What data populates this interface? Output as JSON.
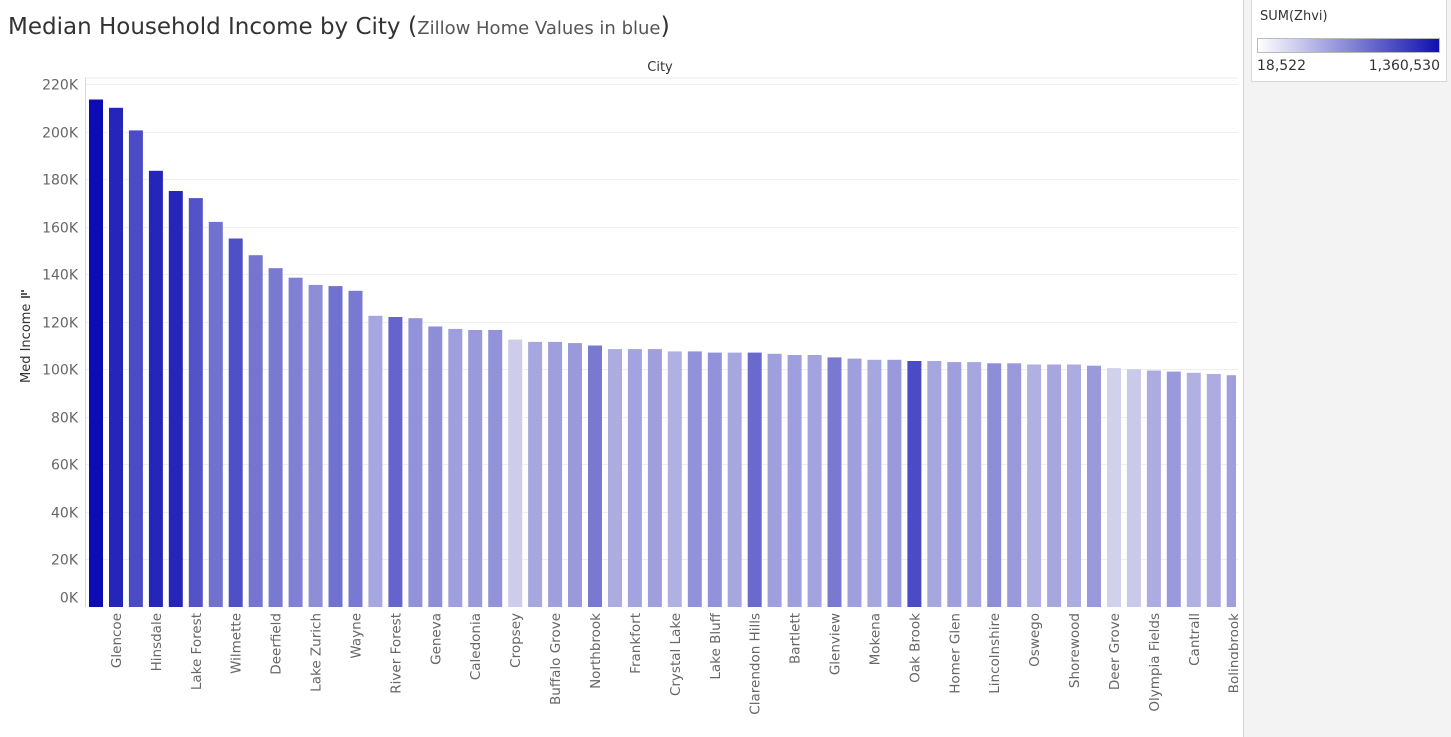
{
  "title": {
    "main": "Median Household Income by City",
    "open_paren": "(",
    "sub": "Zillow Home Values in blue",
    "close_paren": ")"
  },
  "legend": {
    "title": "SUM(Zhvi)",
    "min_label": "18,522",
    "max_label": "1,360,530",
    "color_low": "#ffffff",
    "color_high": "#1010b0"
  },
  "chart_data": {
    "type": "bar",
    "column_header": "City",
    "ylabel": "Med Income",
    "sort_icon": "sort-descending-icon",
    "ylim": [
      0,
      220000
    ],
    "yticks": [
      0,
      20000,
      40000,
      60000,
      80000,
      100000,
      120000,
      140000,
      160000,
      180000,
      200000,
      220000
    ],
    "ytick_labels": [
      "0K",
      "20K",
      "40K",
      "60K",
      "80K",
      "100K",
      "120K",
      "140K",
      "160K",
      "180K",
      "200K",
      "220K"
    ],
    "grid": true,
    "bar_color_low": "#dedef0",
    "bar_color_high": "#0c0cb2",
    "bars": [
      {
        "label": "",
        "value": 213500,
        "intensity": 1.0
      },
      {
        "label": "Glencoe",
        "value": 210000,
        "intensity": 0.88
      },
      {
        "label": "",
        "value": 200500,
        "intensity": 0.7
      },
      {
        "label": "Hinsdale",
        "value": 183500,
        "intensity": 0.88
      },
      {
        "label": "",
        "value": 175000,
        "intensity": 0.88
      },
      {
        "label": "Lake Forest",
        "value": 172000,
        "intensity": 0.66
      },
      {
        "label": "",
        "value": 162000,
        "intensity": 0.52
      },
      {
        "label": "Wilmette",
        "value": 155000,
        "intensity": 0.68
      },
      {
        "label": "",
        "value": 148000,
        "intensity": 0.5
      },
      {
        "label": "Deerfield",
        "value": 142500,
        "intensity": 0.48
      },
      {
        "label": "",
        "value": 138500,
        "intensity": 0.45
      },
      {
        "label": "Lake Zurich",
        "value": 135500,
        "intensity": 0.38
      },
      {
        "label": "",
        "value": 135000,
        "intensity": 0.52
      },
      {
        "label": "Wayne",
        "value": 133000,
        "intensity": 0.48
      },
      {
        "label": "",
        "value": 122500,
        "intensity": 0.26
      },
      {
        "label": "River Forest",
        "value": 122000,
        "intensity": 0.58
      },
      {
        "label": "",
        "value": 121500,
        "intensity": 0.36
      },
      {
        "label": "Geneva",
        "value": 118000,
        "intensity": 0.38
      },
      {
        "label": "",
        "value": 117000,
        "intensity": 0.3
      },
      {
        "label": "Caledonia",
        "value": 116500,
        "intensity": 0.33
      },
      {
        "label": "",
        "value": 116500,
        "intensity": 0.36
      },
      {
        "label": "Cropsey",
        "value": 112500,
        "intensity": 0.08
      },
      {
        "label": "",
        "value": 111500,
        "intensity": 0.26
      },
      {
        "label": "Buffalo Grove",
        "value": 111500,
        "intensity": 0.3
      },
      {
        "label": "",
        "value": 111000,
        "intensity": 0.33
      },
      {
        "label": "Northbrook",
        "value": 110000,
        "intensity": 0.48
      },
      {
        "label": "",
        "value": 108500,
        "intensity": 0.24
      },
      {
        "label": "Frankfort",
        "value": 108500,
        "intensity": 0.28
      },
      {
        "label": "",
        "value": 108500,
        "intensity": 0.3
      },
      {
        "label": "Crystal Lake",
        "value": 107500,
        "intensity": 0.22
      },
      {
        "label": "",
        "value": 107500,
        "intensity": 0.36
      },
      {
        "label": "Lake Bluff",
        "value": 107000,
        "intensity": 0.36
      },
      {
        "label": "",
        "value": 107000,
        "intensity": 0.26
      },
      {
        "label": "Clarendon Hills",
        "value": 107000,
        "intensity": 0.55
      },
      {
        "label": "",
        "value": 106500,
        "intensity": 0.3
      },
      {
        "label": "Bartlett",
        "value": 106000,
        "intensity": 0.3
      },
      {
        "label": "",
        "value": 106000,
        "intensity": 0.28
      },
      {
        "label": "Glenview",
        "value": 105000,
        "intensity": 0.48
      },
      {
        "label": "",
        "value": 104500,
        "intensity": 0.3
      },
      {
        "label": "Mokena",
        "value": 104000,
        "intensity": 0.26
      },
      {
        "label": "",
        "value": 104000,
        "intensity": 0.33
      },
      {
        "label": "Oak Brook",
        "value": 103500,
        "intensity": 0.7
      },
      {
        "label": "",
        "value": 103500,
        "intensity": 0.26
      },
      {
        "label": "Homer Glen",
        "value": 103000,
        "intensity": 0.3
      },
      {
        "label": "",
        "value": 103000,
        "intensity": 0.26
      },
      {
        "label": "Lincolnshire",
        "value": 102500,
        "intensity": 0.38
      },
      {
        "label": "",
        "value": 102500,
        "intensity": 0.33
      },
      {
        "label": "Oswego",
        "value": 102000,
        "intensity": 0.22
      },
      {
        "label": "",
        "value": 102000,
        "intensity": 0.26
      },
      {
        "label": "Shorewood",
        "value": 102000,
        "intensity": 0.24
      },
      {
        "label": "",
        "value": 101500,
        "intensity": 0.33
      },
      {
        "label": "Deer Grove",
        "value": 100500,
        "intensity": 0.06
      },
      {
        "label": "",
        "value": 100000,
        "intensity": 0.1
      },
      {
        "label": "Olympia Fields",
        "value": 99500,
        "intensity": 0.24
      },
      {
        "label": "",
        "value": 99000,
        "intensity": 0.33
      },
      {
        "label": "Cantrall",
        "value": 98500,
        "intensity": 0.22
      },
      {
        "label": "",
        "value": 98000,
        "intensity": 0.24
      },
      {
        "label": "Bolingbrook",
        "value": 97500,
        "intensity": 0.3
      }
    ]
  }
}
